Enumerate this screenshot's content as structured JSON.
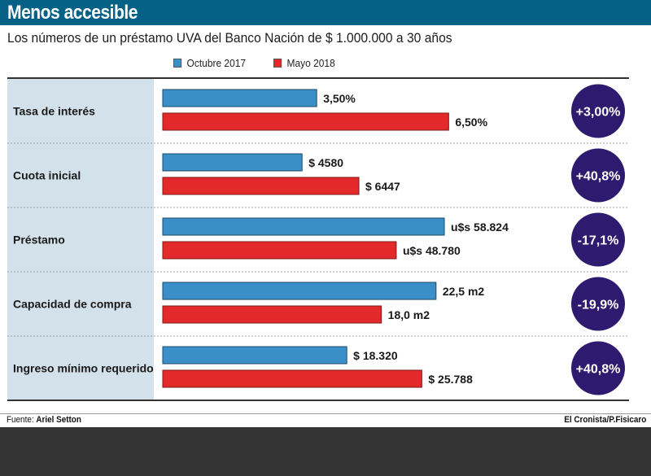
{
  "header": {
    "title": "Menos accesible",
    "subtitle": "Los números de un préstamo UVA del Banco Nación de $ 1.000.000 a 30 años"
  },
  "footer": {
    "source_label": "Fuente:",
    "source_name": "Ariel Setton",
    "credit": "El Cronista/P.Fisicaro"
  },
  "chart_data": {
    "type": "bar",
    "orientation": "horizontal",
    "title": "Menos accesible",
    "subtitle": "Los números de un préstamo UVA del Banco Nación de $ 1.000.000 a 30 años",
    "legend": [
      "Octubre 2017",
      "Mayo 2018"
    ],
    "legend_position": "top",
    "colors": {
      "Octubre 2017": "#3a8fc8",
      "Mayo 2018": "#e3292a",
      "badge": "#2e1a6e",
      "header": "#056185",
      "label_column": "#d3e1ea"
    },
    "categories": [
      "Tasa de interés",
      "Cuota inicial",
      "Préstamo",
      "Capacidad de compra",
      "Ingreso mínimo requerido"
    ],
    "series": [
      {
        "name": "Octubre 2017",
        "values": [
          3.5,
          4580,
          58824,
          22.5,
          18320
        ],
        "labels": [
          "3,50%",
          "$ 4580",
          "u$s 58.824",
          "22,5 m2",
          "$ 18.320"
        ]
      },
      {
        "name": "Mayo 2018",
        "values": [
          6.5,
          6447,
          48780,
          18.0,
          25788
        ],
        "labels": [
          "6,50%",
          "$ 6447",
          "u$s 48.780",
          "18,0 m2",
          "$ 25.788"
        ]
      }
    ],
    "bar_scale_max": [
      7.4,
      10700,
      68000,
      26.8,
      32400
    ],
    "changes": [
      "+3,00%",
      "+40,8%",
      "-17,1%",
      "-19,9%",
      "+40,8%"
    ],
    "xlabel": "",
    "ylabel": "",
    "grid": false
  }
}
